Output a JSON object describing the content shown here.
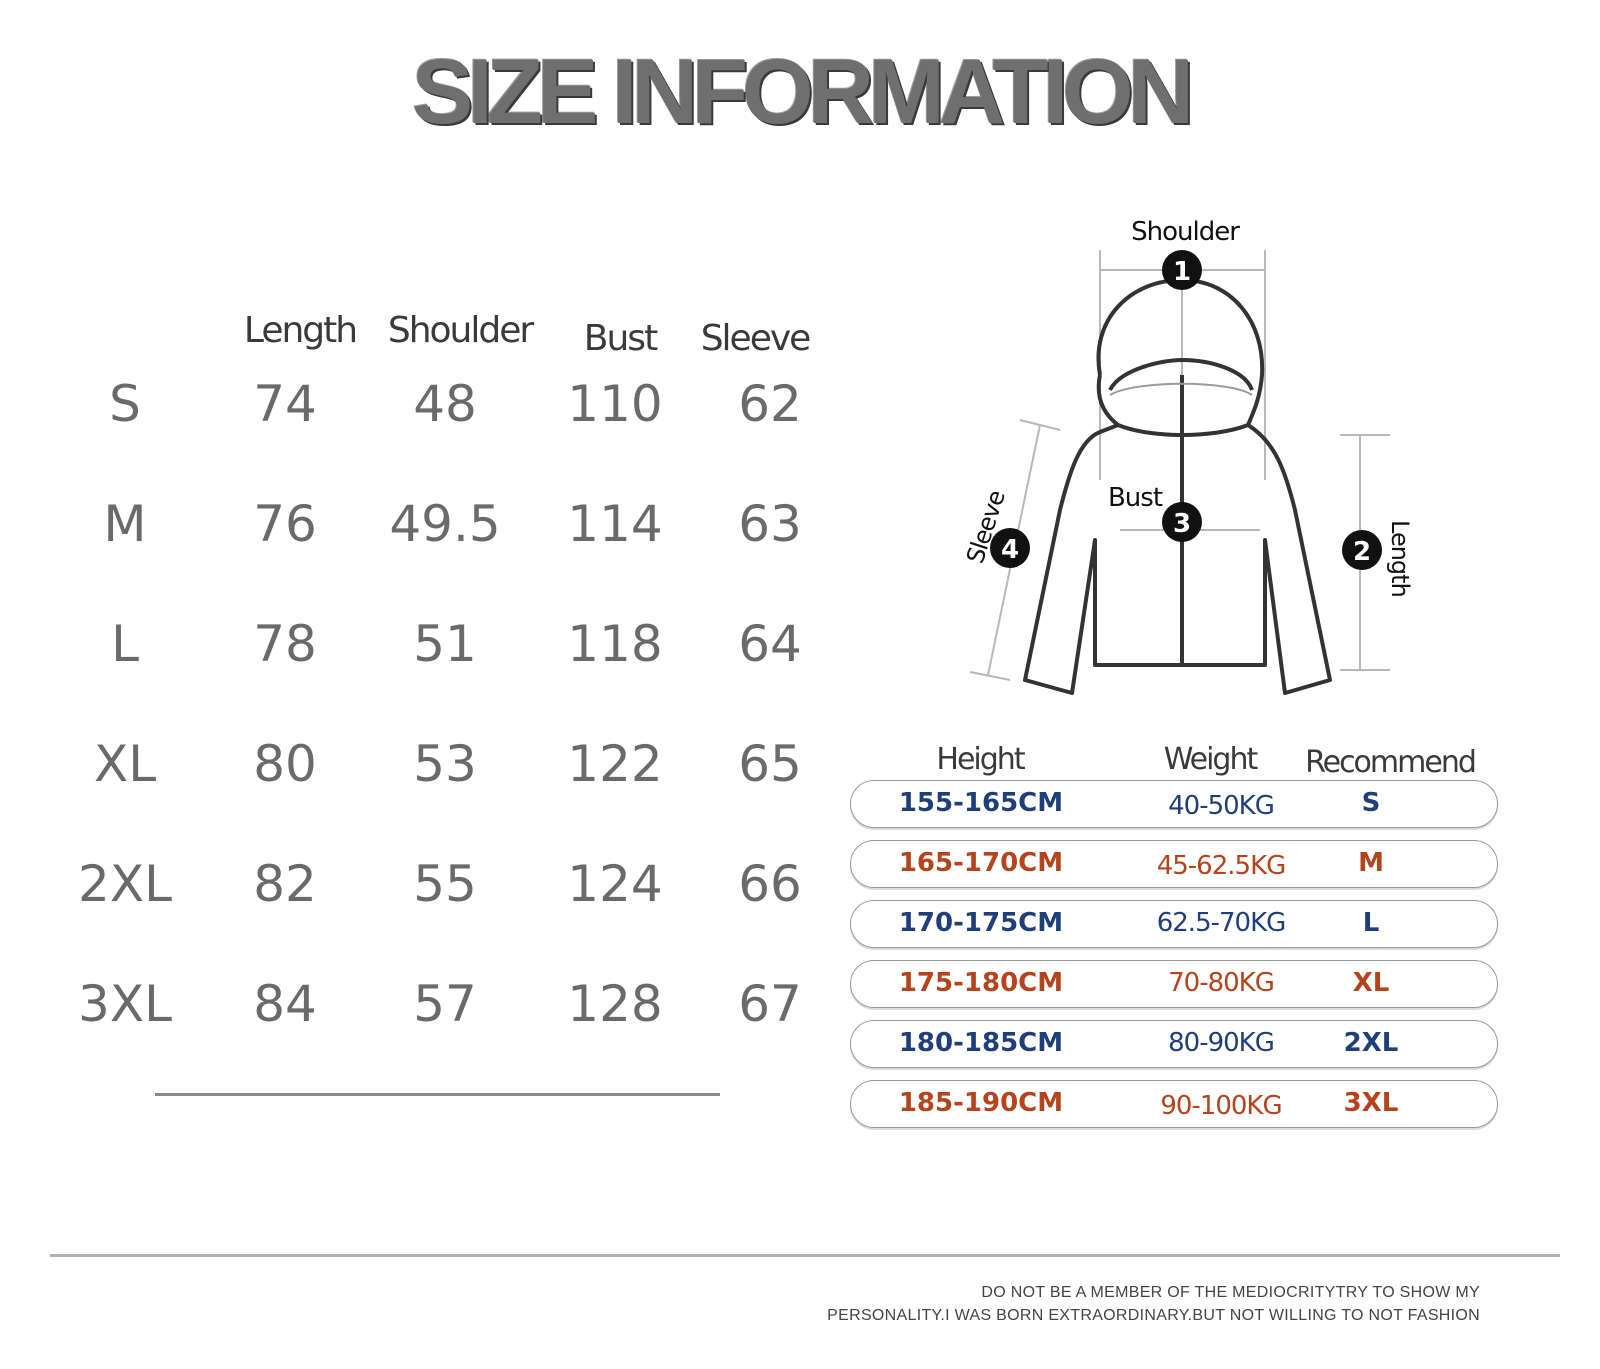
{
  "title": "SIZE INFORMATION",
  "size_table": {
    "headers": [
      "Length",
      "Shoulder",
      "Bust",
      "Sleeve"
    ],
    "rows": [
      {
        "size": "S",
        "length": "74",
        "shoulder": "48",
        "bust": "110",
        "sleeve": "62"
      },
      {
        "size": "M",
        "length": "76",
        "shoulder": "49.5",
        "bust": "114",
        "sleeve": "63"
      },
      {
        "size": "L",
        "length": "78",
        "shoulder": "51",
        "bust": "118",
        "sleeve": "64"
      },
      {
        "size": "XL",
        "length": "80",
        "shoulder": "53",
        "bust": "122",
        "sleeve": "65"
      },
      {
        "size": "2XL",
        "length": "82",
        "shoulder": "55",
        "bust": "124",
        "sleeve": "66"
      },
      {
        "size": "3XL",
        "length": "84",
        "shoulder": "57",
        "bust": "128",
        "sleeve": "67"
      }
    ]
  },
  "diagram": {
    "shoulder_label": "Shoulder",
    "length_label": "Length",
    "bust_label": "Bust",
    "sleeve_label": "Sleeve",
    "markers": [
      "1",
      "2",
      "3",
      "4"
    ]
  },
  "recommend": {
    "headers": {
      "height": "Height",
      "weight": "Weight",
      "recommend": "Recommend"
    },
    "rows": [
      {
        "height": "155-165CM",
        "weight": "40-50KG",
        "size": "S",
        "color": "#1f3f7a"
      },
      {
        "height": "165-170CM",
        "weight": "45-62.5KG",
        "size": "M",
        "color": "#b5431c"
      },
      {
        "height": "170-175CM",
        "weight": "62.5-70KG",
        "size": "L",
        "color": "#1f3f7a"
      },
      {
        "height": "175-180CM",
        "weight": "70-80KG",
        "size": "XL",
        "color": "#b5431c"
      },
      {
        "height": "180-185CM",
        "weight": "80-90KG",
        "size": "2XL",
        "color": "#1f3f7a"
      },
      {
        "height": "185-190CM",
        "weight": "90-100KG",
        "size": "3XL",
        "color": "#b5431c"
      }
    ]
  },
  "footer": {
    "line1": "DO NOT BE A MEMBER OF THE MEDIOCRITYTRY TO SHOW MY",
    "line2": "PERSONALITY.I WAS BORN EXTRAORDINARY.BUT NOT WILLING TO NOT FASHION"
  }
}
